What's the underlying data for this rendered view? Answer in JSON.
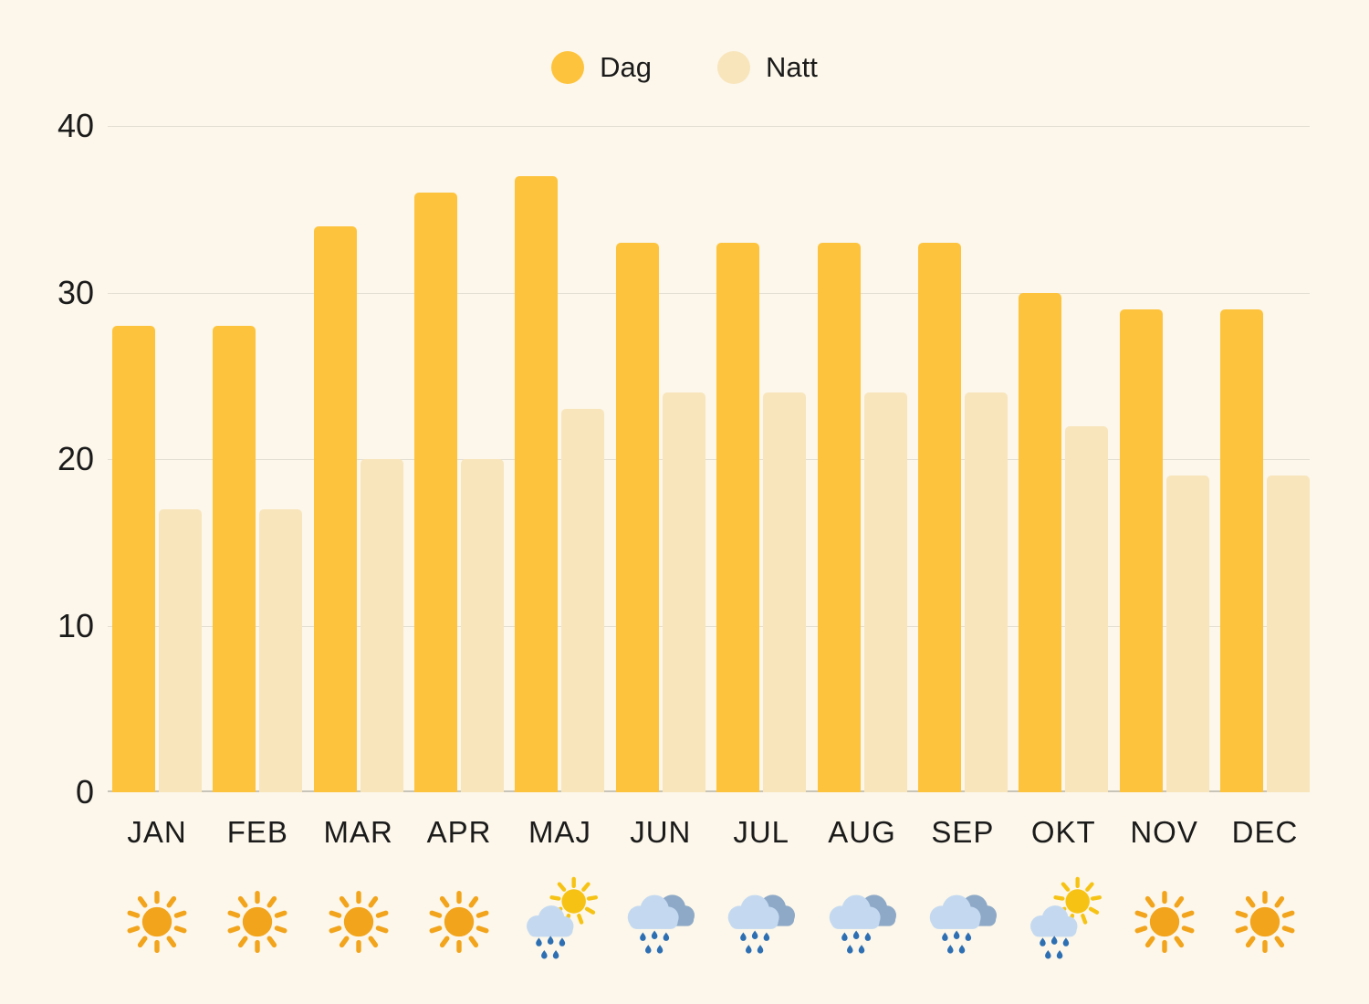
{
  "chart_data": {
    "type": "bar",
    "categories": [
      "JAN",
      "FEB",
      "MAR",
      "APR",
      "MAJ",
      "JUN",
      "JUL",
      "AUG",
      "SEP",
      "OKT",
      "NOV",
      "DEC"
    ],
    "series": [
      {
        "name": "Dag",
        "color": "#FDC33D",
        "values": [
          28,
          28,
          34,
          36,
          37,
          33,
          33,
          33,
          33,
          30,
          29,
          29
        ]
      },
      {
        "name": "Natt",
        "color": "#F8E5BC",
        "values": [
          17,
          17,
          20,
          20,
          23,
          24,
          24,
          24,
          24,
          22,
          19,
          19
        ]
      }
    ],
    "title": "",
    "xlabel": "",
    "ylabel": "",
    "ylim": [
      0,
      40
    ],
    "yticks": [
      0,
      10,
      20,
      30,
      40
    ],
    "grid": true,
    "legend_position": "top-center"
  },
  "month_icons": [
    "sun",
    "sun",
    "sun",
    "sun",
    "rain-sun",
    "rain",
    "rain",
    "rain",
    "rain",
    "rain-sun",
    "sun",
    "sun"
  ],
  "icon_colors": {
    "sun": "#F2A41C",
    "sun_bright": "#F6C315",
    "cloud_light": "#C4D9F0",
    "cloud_dark": "#8EA9C7",
    "raindrop": "#2E6FB3"
  },
  "colors": {
    "background": "#FCF7EA",
    "grid": "#E3DED2",
    "axis": "#C9C4B8",
    "text": "#1B1B1B"
  }
}
